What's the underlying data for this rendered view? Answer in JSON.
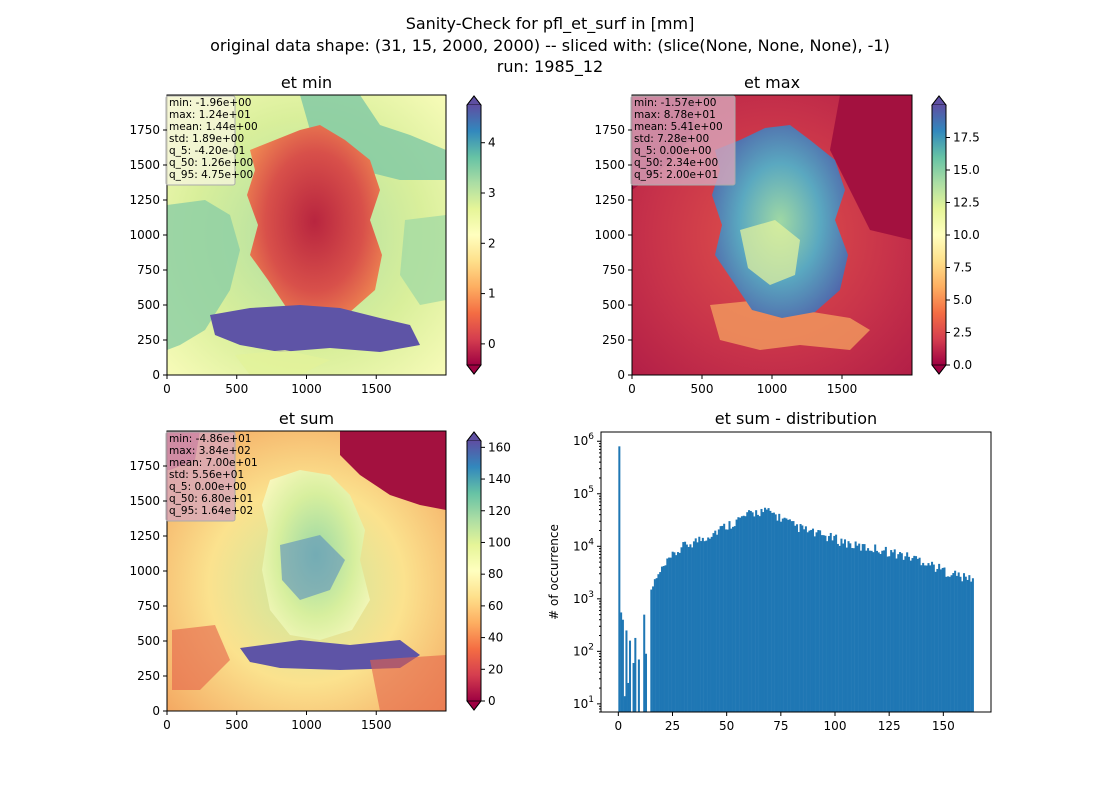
{
  "title": {
    "line1": "Sanity-Check for pfl_et_surf in [mm]",
    "line2": "original data shape: (31, 15, 2000, 2000) -- sliced with: (slice(None, None, None), -1)",
    "line3": "run: 1985_12"
  },
  "colormap": "Spectral",
  "chart_data": [
    {
      "type": "heatmap",
      "id": "etmin",
      "title": "et min",
      "xlim": [
        0,
        2000
      ],
      "ylim": [
        0,
        2000
      ],
      "xticks": [
        0,
        500,
        1000,
        1500
      ],
      "yticks": [
        0,
        250,
        500,
        750,
        1000,
        1250,
        1500,
        1750
      ],
      "colorbar": {
        "vmin": -0.42,
        "vmax": 4.75,
        "ticks": [
          0,
          1,
          2,
          3,
          4
        ],
        "extend": "both"
      },
      "stats": [
        "min: -1.96e+00",
        "max: 1.24e+01",
        "mean: 1.44e+00",
        "std: 1.89e+00",
        "q_5: -4.20e-01",
        "q_50: 1.26e+00",
        "q_95: 4.75e+00"
      ],
      "stats_box_color": "#f5f5dc"
    },
    {
      "type": "heatmap",
      "id": "etmax",
      "title": "et max",
      "xlim": [
        0,
        2000
      ],
      "ylim": [
        0,
        2000
      ],
      "xticks": [
        0,
        500,
        1000,
        1500
      ],
      "yticks": [
        0,
        250,
        500,
        750,
        1000,
        1250,
        1500,
        1750
      ],
      "colorbar": {
        "vmin": 0,
        "vmax": 20,
        "ticks": [
          0.0,
          2.5,
          5.0,
          7.5,
          10.0,
          12.5,
          15.0,
          17.5
        ],
        "extend": "both"
      },
      "stats": [
        "min: -1.57e+00",
        "max: 8.78e+01",
        "mean: 5.41e+00",
        "std: 7.28e+00",
        "q_5: 0.00e+00",
        "q_50: 2.34e+00",
        "q_95: 2.00e+01"
      ],
      "stats_box_color": "#d8a8bc"
    },
    {
      "type": "heatmap",
      "id": "etsum",
      "title": "et sum",
      "xlim": [
        0,
        2000
      ],
      "ylim": [
        0,
        2000
      ],
      "xticks": [
        0,
        500,
        1000,
        1500
      ],
      "yticks": [
        0,
        250,
        500,
        750,
        1000,
        1250,
        1500,
        1750
      ],
      "colorbar": {
        "vmin": 0,
        "vmax": 164,
        "ticks": [
          0,
          20,
          40,
          60,
          80,
          100,
          120,
          140,
          160
        ],
        "extend": "both"
      },
      "stats": [
        "min: -4.86e+01",
        "max: 3.84e+02",
        "mean: 7.00e+01",
        "std: 5.56e+01",
        "q_5: 0.00e+00",
        "q_50: 6.80e+01",
        "q_95: 1.64e+02"
      ],
      "stats_box_color": "#d8a8bc"
    },
    {
      "type": "bar",
      "id": "hist",
      "title": "et sum - distribution",
      "ylabel": "# of occurrence",
      "xlabel": "",
      "yscale": "log",
      "xlim": [
        -8,
        172
      ],
      "ylim": [
        7,
        1500000
      ],
      "xticks": [
        0,
        25,
        50,
        75,
        100,
        125,
        150
      ],
      "yticks": [
        {
          "value": 10,
          "base": "10",
          "exp": "1"
        },
        {
          "value": 100,
          "base": "10",
          "exp": "2"
        },
        {
          "value": 1000,
          "base": "10",
          "exp": "3"
        },
        {
          "value": 10000,
          "base": "10",
          "exp": "4"
        },
        {
          "value": 100000,
          "base": "10",
          "exp": "5"
        },
        {
          "value": 1000000,
          "base": "10",
          "exp": "6"
        }
      ],
      "bar_color": "#1f77b4",
      "bin_range": [
        0,
        164
      ],
      "bins": 200,
      "spikes": [
        {
          "x": 0.2,
          "value": 800000
        },
        {
          "x": 1.0,
          "value": 550
        },
        {
          "x": 1.8,
          "value": 400
        },
        {
          "x": 2.6,
          "value": 14
        },
        {
          "x": 3.4,
          "value": 250
        },
        {
          "x": 4.2,
          "value": 25
        },
        {
          "x": 5.0,
          "value": 160
        },
        {
          "x": 6.6,
          "value": 60
        },
        {
          "x": 8.2,
          "value": 180
        },
        {
          "x": 9.8,
          "value": 70
        },
        {
          "x": 11.5,
          "value": 500
        },
        {
          "x": 13.1,
          "value": 90
        },
        {
          "x": 14.8,
          "value": 1500
        }
      ],
      "envelope": [
        [
          0,
          400
        ],
        [
          10,
          600
        ],
        [
          15,
          1600
        ],
        [
          20,
          3500
        ],
        [
          25,
          6500
        ],
        [
          30,
          10000
        ],
        [
          40,
          15000
        ],
        [
          50,
          25000
        ],
        [
          60,
          40000
        ],
        [
          65,
          47000
        ],
        [
          70,
          45000
        ],
        [
          75,
          35000
        ],
        [
          80,
          26000
        ],
        [
          90,
          18000
        ],
        [
          100,
          14000
        ],
        [
          110,
          10000
        ],
        [
          120,
          9000
        ],
        [
          130,
          7000
        ],
        [
          140,
          5500
        ],
        [
          150,
          3500
        ],
        [
          155,
          3000
        ],
        [
          160,
          2500
        ],
        [
          164,
          2500
        ]
      ]
    }
  ]
}
